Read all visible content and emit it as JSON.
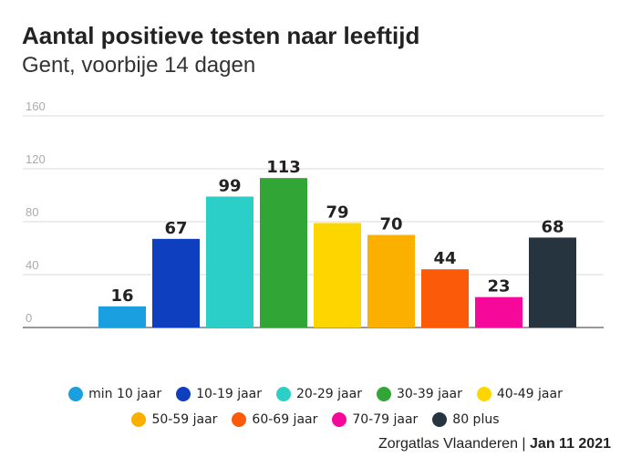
{
  "chart_data": {
    "type": "bar",
    "title": "Aantal positieve testen naar leeftijd",
    "subtitle": "Gent, voorbije 14 dagen",
    "categories": [
      "min 10 jaar",
      "10-19 jaar",
      "20-29 jaar",
      "30-39 jaar",
      "40-49 jaar",
      "50-59 jaar",
      "60-69 jaar",
      "70-79 jaar",
      "80 plus"
    ],
    "values": [
      16,
      67,
      99,
      113,
      79,
      70,
      44,
      23,
      68
    ],
    "colors": [
      "#1a9fe0",
      "#0e3fbf",
      "#2ccfc8",
      "#32a537",
      "#fdd600",
      "#fbb000",
      "#fb5a08",
      "#f5089a",
      "#25343f"
    ],
    "ylim": [
      0,
      160
    ],
    "yticks": [
      0,
      40,
      80,
      120,
      160
    ],
    "xlabel": "",
    "ylabel": "",
    "grid": true,
    "legend": "bottom"
  },
  "source": {
    "name": "Zorgatlas Vlaanderen",
    "separator": "|",
    "date": "Jan 11 2021"
  }
}
